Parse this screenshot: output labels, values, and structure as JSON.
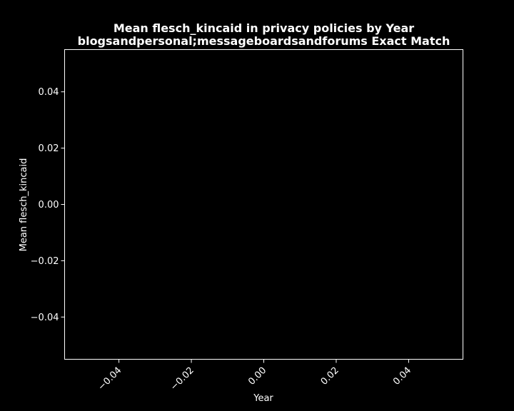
{
  "chart_data": {
    "type": "line",
    "title": "Mean flesch_kincaid in privacy policies by Year",
    "subtitle": "blogsandpersonal;messageboardsandforums Exact Match",
    "xlabel": "Year",
    "ylabel": "Mean flesch_kincaid",
    "x": [],
    "values": [],
    "xlim": [
      -0.055,
      0.055
    ],
    "ylim": [
      -0.055,
      0.055
    ],
    "xticks": [
      -0.04,
      -0.02,
      0.0,
      0.02,
      0.04
    ],
    "yticks": [
      -0.04,
      -0.02,
      0.0,
      0.02,
      0.04
    ],
    "xtick_labels": [
      "−0.04",
      "−0.02",
      "0.00",
      "0.02",
      "0.04"
    ],
    "ytick_labels": [
      "−0.04",
      "−0.02",
      "0.00",
      "0.02",
      "0.04"
    ],
    "grid": false,
    "colors": {
      "background": "#000000",
      "foreground": "#ffffff"
    }
  }
}
